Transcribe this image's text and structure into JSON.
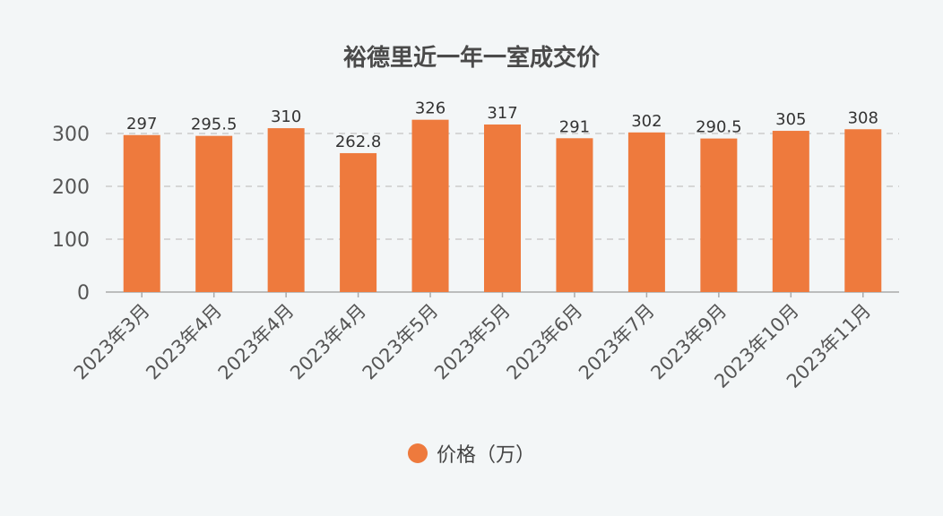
{
  "chart_data": {
    "type": "bar",
    "title": "裕德里近一年一室成交价",
    "categories": [
      "2023年3月",
      "2023年4月",
      "2023年4月",
      "2023年4月",
      "2023年5月",
      "2023年5月",
      "2023年6月",
      "2023年7月",
      "2023年9月",
      "2023年10月",
      "2023年11月"
    ],
    "series": [
      {
        "name": "价格（万）",
        "values": [
          297,
          295.5,
          310,
          262.8,
          326,
          317,
          291,
          302,
          290.5,
          305,
          308
        ],
        "labels": [
          "297",
          "295.5",
          "310",
          "262.8",
          "326",
          "317",
          "291",
          "302",
          "290.5",
          "305",
          "308"
        ]
      }
    ],
    "yticks": [
      "0",
      "100",
      "200",
      "300"
    ],
    "ylim": [
      0,
      330
    ],
    "grid": true,
    "legend_position": "bottom",
    "bar_color": "#ee7a3d",
    "grid_color": "#cccccc",
    "axis_color": "#aaaaaa"
  }
}
